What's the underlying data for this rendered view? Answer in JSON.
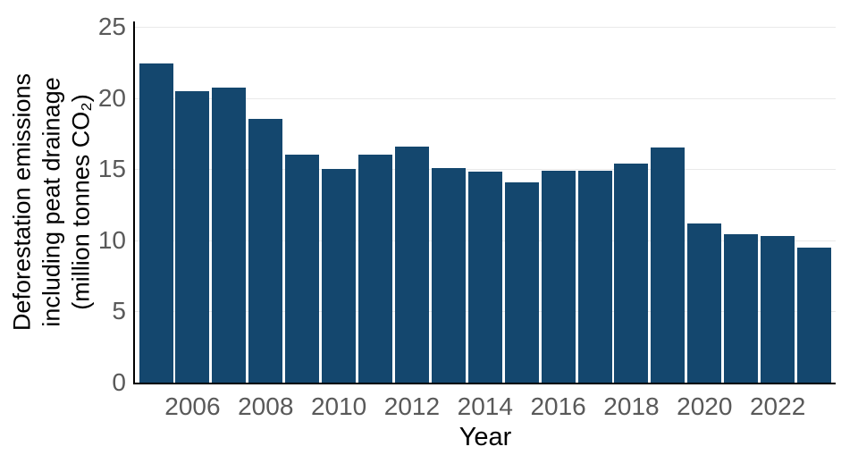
{
  "figure": {
    "background": "#ffffff",
    "bar_color": "#14476e",
    "grid_color": "#e9e9e9",
    "spine_color": "#000000",
    "tick_label_color": "#595959",
    "text_color": "#000000"
  },
  "chart_data": {
    "type": "bar",
    "title": "",
    "xlabel": "Year",
    "ylabel": "Deforestation emissions including peat drainage (million tonnes CO₂)",
    "ylabel_lines": [
      "Deforestation emissions",
      "including peat drainage",
      "(million tonnes CO₂)"
    ],
    "categories": [
      2005,
      2006,
      2007,
      2008,
      2009,
      2010,
      2011,
      2012,
      2013,
      2014,
      2015,
      2016,
      2017,
      2018,
      2019,
      2020,
      2021,
      2022,
      2023
    ],
    "values": [
      22.4,
      20.5,
      20.7,
      18.5,
      16.0,
      15.0,
      16.0,
      16.6,
      15.1,
      14.8,
      14.1,
      14.9,
      14.9,
      15.4,
      16.5,
      11.2,
      10.4,
      10.3,
      9.5
    ],
    "x_tick_labels": [
      "2006",
      "2008",
      "2010",
      "2012",
      "2014",
      "2016",
      "2018",
      "2020",
      "2022"
    ],
    "y_tick_labels": [
      "0",
      "5",
      "10",
      "15",
      "20",
      "25"
    ],
    "y_ticks": [
      0,
      5,
      10,
      15,
      20,
      25
    ],
    "ylim": [
      0,
      25
    ],
    "grid": "horizontal",
    "legend_position": "none"
  }
}
